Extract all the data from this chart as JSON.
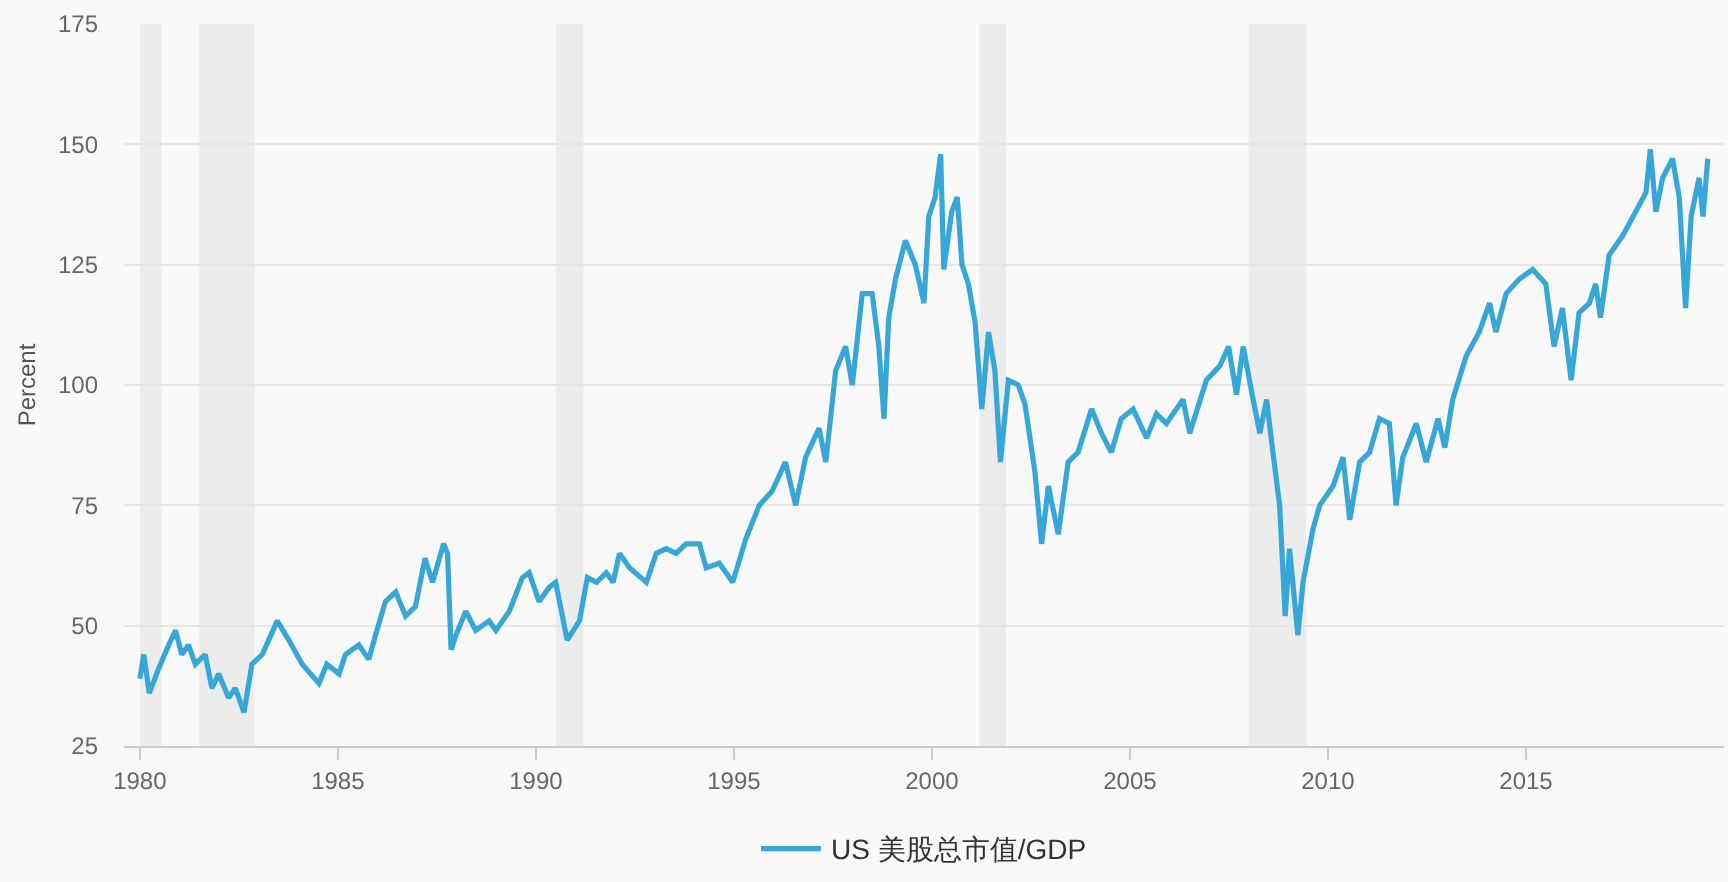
{
  "chart_data": {
    "type": "line",
    "ylabel": "Percent",
    "x": [
      1980.0,
      1980.1,
      1980.24,
      1980.47,
      1980.73,
      1980.9,
      1981.06,
      1981.23,
      1981.4,
      1981.65,
      1981.82,
      1981.99,
      1982.24,
      1982.41,
      1982.63,
      1982.83,
      1983.09,
      1983.47,
      1983.76,
      1984.1,
      1984.52,
      1984.72,
      1985.03,
      1985.19,
      1985.53,
      1985.78,
      1985.95,
      1986.2,
      1986.46,
      1986.71,
      1986.96,
      1987.2,
      1987.39,
      1987.67,
      1987.77,
      1987.86,
      1987.98,
      1988.23,
      1988.48,
      1988.82,
      1988.99,
      1989.33,
      1989.66,
      1989.83,
      1990.08,
      1990.34,
      1990.5,
      1990.79,
      1991.1,
      1991.3,
      1991.53,
      1991.78,
      1991.95,
      1992.11,
      1992.37,
      1992.79,
      1993.04,
      1993.29,
      1993.54,
      1993.79,
      1994.13,
      1994.3,
      1994.63,
      1994.97,
      1995.3,
      1995.64,
      1995.97,
      1996.3,
      1996.56,
      1996.81,
      1997.15,
      1997.32,
      1997.57,
      1997.82,
      1997.99,
      1998.24,
      1998.49,
      1998.66,
      1998.79,
      1998.91,
      1999.08,
      1999.33,
      1999.58,
      1999.8,
      1999.92,
      2000.08,
      2000.22,
      2000.3,
      2000.5,
      2000.64,
      2000.76,
      2000.92,
      2001.09,
      2001.26,
      2001.43,
      2001.59,
      2001.73,
      2001.93,
      2002.18,
      2002.35,
      2002.6,
      2002.77,
      2002.94,
      2003.19,
      2003.44,
      2003.69,
      2004.03,
      2004.28,
      2004.53,
      2004.78,
      2005.08,
      2005.42,
      2005.67,
      2005.92,
      2006.34,
      2006.51,
      2006.93,
      2007.27,
      2007.49,
      2007.69,
      2007.86,
      2008.11,
      2008.28,
      2008.45,
      2008.61,
      2008.78,
      2008.92,
      2009.03,
      2009.24,
      2009.37,
      2009.62,
      2009.79,
      2010.13,
      2010.38,
      2010.55,
      2010.8,
      2011.05,
      2011.3,
      2011.55,
      2011.72,
      2011.89,
      2012.23,
      2012.48,
      2012.78,
      2012.95,
      2013.15,
      2013.49,
      2013.82,
      2014.08,
      2014.24,
      2014.5,
      2014.83,
      2015.17,
      2015.5,
      2015.71,
      2015.92,
      2016.14,
      2016.34,
      2016.6,
      2016.76,
      2016.88,
      2017.1,
      2017.44,
      2017.77,
      2018.03,
      2018.14,
      2018.28,
      2018.45,
      2018.7,
      2018.87,
      2019.03,
      2019.17,
      2019.37,
      2019.47,
      2019.59
    ],
    "series": [
      {
        "name": "US 美股总市值/GDP",
        "color": "#37a7d8",
        "values": [
          39,
          44,
          36,
          41,
          46,
          49,
          44,
          46,
          42,
          44,
          37,
          40,
          35,
          37,
          32,
          42,
          44,
          51,
          47,
          42,
          38,
          42,
          40,
          44,
          46,
          43,
          48,
          55,
          57,
          52,
          54,
          64,
          59,
          67,
          65,
          45,
          48,
          53,
          49,
          51,
          49,
          53,
          60,
          61,
          55,
          58,
          59,
          47,
          51,
          60,
          59,
          61,
          59,
          65,
          62,
          59,
          65,
          66,
          65,
          67,
          67,
          62,
          63,
          59,
          68,
          75,
          78,
          84,
          75,
          85,
          91,
          84,
          103,
          108,
          100,
          119,
          119,
          108,
          93,
          114,
          122,
          130,
          125,
          117,
          135,
          139,
          148,
          124,
          136,
          139,
          125,
          121,
          113,
          95,
          111,
          103,
          84,
          101,
          100,
          96,
          82,
          67,
          79,
          69,
          84,
          86,
          95,
          90,
          86,
          93,
          95,
          89,
          94,
          92,
          97,
          90,
          101,
          104,
          108,
          98,
          108,
          97,
          90,
          97,
          86,
          75,
          52,
          66,
          48,
          59,
          70,
          75,
          79,
          85,
          72,
          84,
          86,
          93,
          92,
          75,
          85,
          92,
          84,
          93,
          87,
          97,
          106,
          111,
          117,
          111,
          119,
          122,
          124,
          121,
          108,
          116,
          101,
          115,
          117,
          121,
          114,
          127,
          131,
          136,
          140,
          149,
          136,
          143,
          147,
          139,
          116,
          135,
          143,
          135,
          147
        ]
      }
    ],
    "xlim": [
      1979.6,
      2020
    ],
    "xticks": [
      1980,
      1985,
      1990,
      1995,
      2000,
      2005,
      2010,
      2015
    ],
    "ylim": [
      25,
      175
    ],
    "yticks": [
      25,
      50,
      75,
      100,
      125,
      150,
      175
    ],
    "grid": "y",
    "legend": "bottom",
    "bands": [
      {
        "axis": "x",
        "from": 1980.0,
        "to": 1980.55,
        "color": "#ececec"
      },
      {
        "axis": "x",
        "from": 1981.5,
        "to": 1982.9,
        "color": "#ececec"
      },
      {
        "axis": "x",
        "from": 1990.5,
        "to": 1991.2,
        "color": "#ececec"
      },
      {
        "axis": "x",
        "from": 2001.2,
        "to": 2001.87,
        "color": "#ececec"
      },
      {
        "axis": "x",
        "from": 2008.0,
        "to": 2009.45,
        "color": "#ececec"
      }
    ]
  }
}
